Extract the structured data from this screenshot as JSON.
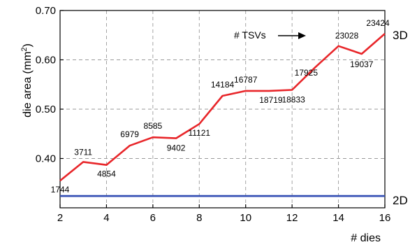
{
  "chart_data": {
    "type": "line",
    "xlabel": "# dies",
    "ylabel": "die area (mm²)",
    "ylabel_main": "die area (mm",
    "ylabel_sup": "2",
    "ylabel_close": ")",
    "xlim": [
      2,
      16
    ],
    "ylim": [
      0.3,
      0.7
    ],
    "xticks": [
      "2",
      "4",
      "6",
      "8",
      "10",
      "12",
      "14",
      "16"
    ],
    "yticks": [
      "0.40",
      "0.50",
      "0.60",
      "0.70"
    ],
    "grid": true,
    "series": [
      {
        "name": "3D",
        "color": "#e8262a",
        "x": [
          2,
          3,
          4,
          5,
          6,
          7,
          8,
          9,
          10,
          11,
          12,
          13,
          14,
          15,
          16
        ],
        "y": [
          0.355,
          0.393,
          0.387,
          0.426,
          0.443,
          0.441,
          0.47,
          0.527,
          0.537,
          0.537,
          0.539,
          0.585,
          0.628,
          0.612,
          0.653
        ],
        "point_labels": [
          "1744",
          "3711",
          "4854",
          "6979",
          "8585",
          "9402",
          "11121",
          "14184",
          "16787",
          "18719",
          "18833",
          "17925",
          "23028",
          "19037",
          "23424"
        ]
      },
      {
        "name": "2D",
        "color": "#3650b4",
        "x": [
          2,
          16
        ],
        "y": [
          0.324,
          0.324
        ]
      }
    ],
    "annotations": [
      {
        "text": "# TSVs",
        "points_to": "23028"
      }
    ]
  }
}
